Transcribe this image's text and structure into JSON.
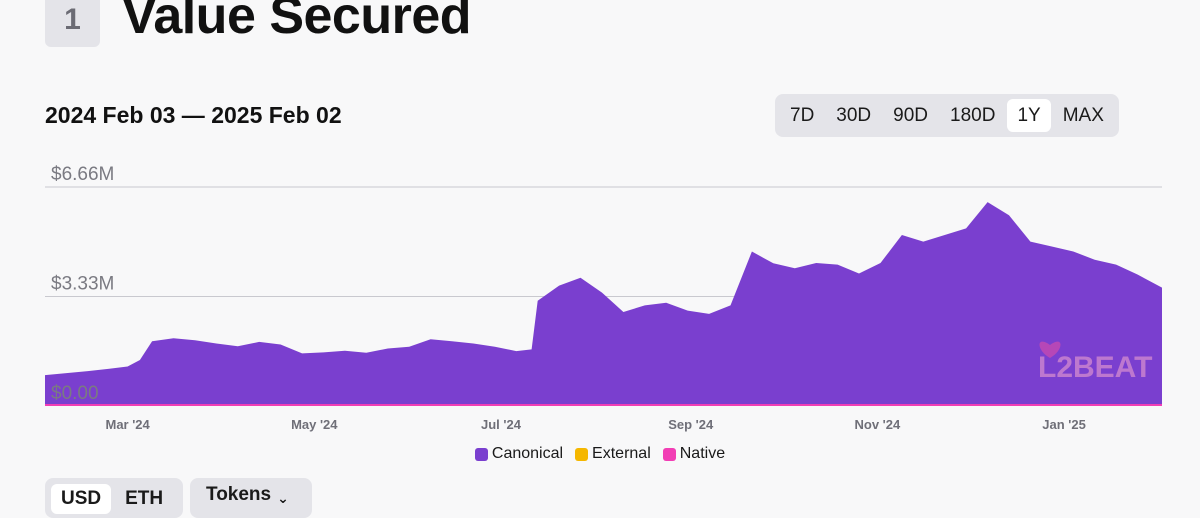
{
  "section": {
    "number": "1",
    "title": "Value Secured"
  },
  "date_range": "2024 Feb 03 — 2025 Feb 02",
  "range_buttons": [
    {
      "label": "7D",
      "active": false
    },
    {
      "label": "30D",
      "active": false
    },
    {
      "label": "90D",
      "active": false
    },
    {
      "label": "180D",
      "active": false
    },
    {
      "label": "1Y",
      "active": true
    },
    {
      "label": "MAX",
      "active": false
    }
  ],
  "legend": [
    {
      "label": "Canonical",
      "color": "#7a3fcf"
    },
    {
      "label": "External",
      "color": "#f5b700"
    },
    {
      "label": "Native",
      "color": "#f23eb5"
    }
  ],
  "watermark": "L2BEAT",
  "currency_toggle": {
    "options": [
      "USD",
      "ETH"
    ],
    "selected": "USD"
  },
  "tokens_button": "Tokens",
  "chart_data": {
    "type": "area",
    "stacked": true,
    "y_ticks": [
      "$6.66M",
      "$3.33M",
      "$0.00"
    ],
    "y_tick_values": [
      6.66,
      3.33,
      0
    ],
    "ylim": [
      0,
      6.66
    ],
    "y_unit": "USD millions",
    "x_ticks": [
      {
        "label": "Mar '24",
        "date": "2024-03-01"
      },
      {
        "label": "May '24",
        "date": "2024-05-01"
      },
      {
        "label": "Jul '24",
        "date": "2024-07-01"
      },
      {
        "label": "Sep '24",
        "date": "2024-09-01"
      },
      {
        "label": "Nov '24",
        "date": "2024-11-01"
      },
      {
        "label": "Jan '25",
        "date": "2025-01-01"
      }
    ],
    "xlim": [
      "2024-02-03",
      "2025-02-02"
    ],
    "grid": true,
    "legend_position": "bottom-center",
    "series": [
      {
        "name": "Canonical",
        "color": "#7a3fcf",
        "points": [
          [
            "2024-02-03",
            0.94
          ],
          [
            "2024-02-10",
            1.0
          ],
          [
            "2024-02-17",
            1.06
          ],
          [
            "2024-02-24",
            1.13
          ],
          [
            "2024-03-01",
            1.2
          ],
          [
            "2024-03-05",
            1.4
          ],
          [
            "2024-03-09",
            1.97
          ],
          [
            "2024-03-16",
            2.06
          ],
          [
            "2024-03-23",
            2.0
          ],
          [
            "2024-03-30",
            1.9
          ],
          [
            "2024-04-06",
            1.82
          ],
          [
            "2024-04-13",
            1.95
          ],
          [
            "2024-04-20",
            1.87
          ],
          [
            "2024-04-27",
            1.6
          ],
          [
            "2024-05-04",
            1.63
          ],
          [
            "2024-05-11",
            1.68
          ],
          [
            "2024-05-18",
            1.62
          ],
          [
            "2024-05-25",
            1.75
          ],
          [
            "2024-06-01",
            1.8
          ],
          [
            "2024-06-08",
            2.03
          ],
          [
            "2024-06-15",
            1.97
          ],
          [
            "2024-06-22",
            1.9
          ],
          [
            "2024-06-29",
            1.8
          ],
          [
            "2024-07-06",
            1.67
          ],
          [
            "2024-07-11",
            1.72
          ],
          [
            "2024-07-13",
            3.2
          ],
          [
            "2024-07-20",
            3.66
          ],
          [
            "2024-07-27",
            3.9
          ],
          [
            "2024-08-03",
            3.45
          ],
          [
            "2024-08-10",
            2.86
          ],
          [
            "2024-08-17",
            3.06
          ],
          [
            "2024-08-24",
            3.14
          ],
          [
            "2024-08-31",
            2.9
          ],
          [
            "2024-09-07",
            2.8
          ],
          [
            "2024-09-14",
            3.06
          ],
          [
            "2024-09-21",
            4.7
          ],
          [
            "2024-09-28",
            4.34
          ],
          [
            "2024-10-05",
            4.19
          ],
          [
            "2024-10-12",
            4.35
          ],
          [
            "2024-10-19",
            4.3
          ],
          [
            "2024-10-26",
            4.03
          ],
          [
            "2024-11-02",
            4.35
          ],
          [
            "2024-11-09",
            5.2
          ],
          [
            "2024-11-16",
            5.0
          ],
          [
            "2024-11-23",
            5.2
          ],
          [
            "2024-11-30",
            5.4
          ],
          [
            "2024-12-07",
            6.2
          ],
          [
            "2024-12-14",
            5.8
          ],
          [
            "2024-12-21",
            5.0
          ],
          [
            "2024-12-28",
            4.85
          ],
          [
            "2025-01-04",
            4.7
          ],
          [
            "2025-01-11",
            4.45
          ],
          [
            "2025-01-18",
            4.3
          ],
          [
            "2025-01-25",
            4.0
          ],
          [
            "2025-02-02",
            3.6
          ]
        ]
      },
      {
        "name": "External",
        "color": "#f5b700",
        "points": [
          [
            "2024-02-03",
            0.0
          ],
          [
            "2025-02-02",
            0.0
          ]
        ]
      },
      {
        "name": "Native",
        "color": "#f23eb5",
        "points": [
          [
            "2024-02-03",
            0.05
          ],
          [
            "2025-02-02",
            0.05
          ]
        ]
      }
    ]
  }
}
